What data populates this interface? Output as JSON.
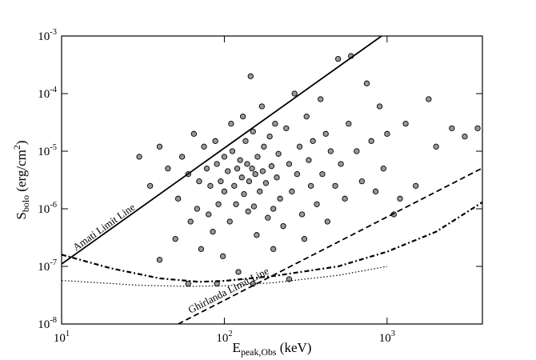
{
  "chart_data": {
    "type": "scatter",
    "xlabel": "E_{peak,Obs} (keV)",
    "ylabel": "S_{bolo} (erg/cm^{2})",
    "xscale": "log",
    "yscale": "log",
    "xlim": [
      10,
      3850
    ],
    "ylim": [
      1e-08,
      0.001
    ],
    "xticks": [
      {
        "value": 10,
        "label": "10^1"
      },
      {
        "value": 100,
        "label": "10^2"
      },
      {
        "value": 1000,
        "label": "10^3"
      }
    ],
    "yticks": [
      {
        "value": 1e-08,
        "label": "10^-8"
      },
      {
        "value": 1e-07,
        "label": "10^-7"
      },
      {
        "value": 1e-06,
        "label": "10^-6"
      },
      {
        "value": 1e-05,
        "label": "10^-5"
      },
      {
        "value": 0.0001,
        "label": "10^-4"
      },
      {
        "value": 0.001,
        "label": "10^-3"
      }
    ],
    "points": {
      "color": "#999999",
      "edge": "#000000",
      "x": [
        30,
        35,
        40,
        45,
        50,
        52,
        55,
        60,
        62,
        65,
        68,
        70,
        72,
        75,
        78,
        80,
        82,
        85,
        88,
        90,
        92,
        95,
        98,
        100,
        100,
        105,
        108,
        110,
        112,
        115,
        118,
        120,
        122,
        125,
        128,
        130,
        132,
        135,
        138,
        140,
        142,
        145,
        148,
        150,
        152,
        155,
        158,
        160,
        165,
        170,
        172,
        175,
        180,
        185,
        190,
        195,
        200,
        200,
        205,
        210,
        215,
        220,
        230,
        240,
        250,
        260,
        270,
        280,
        290,
        300,
        310,
        320,
        330,
        340,
        350,
        370,
        390,
        400,
        420,
        430,
        450,
        480,
        500,
        520,
        550,
        580,
        600,
        650,
        700,
        750,
        800,
        850,
        900,
        950,
        1000,
        1100,
        1200,
        1300,
        1500,
        1800,
        2000,
        2500,
        3000,
        3600,
        40,
        60,
        90,
        150,
        250
      ],
      "y": [
        8e-06,
        2.5e-06,
        1.2e-05,
        5e-06,
        3e-07,
        1.5e-06,
        8e-06,
        4e-06,
        6e-07,
        2e-05,
        1e-06,
        3e-06,
        2e-07,
        1.2e-05,
        5e-06,
        8e-07,
        2.5e-06,
        4e-07,
        1.5e-05,
        6e-06,
        1.2e-06,
        3e-06,
        1.5e-07,
        8e-06,
        2e-06,
        4.5e-06,
        6e-07,
        3e-05,
        1e-05,
        2.5e-06,
        1.2e-06,
        5e-06,
        8e-08,
        7e-06,
        3.5e-06,
        4e-05,
        1.8e-06,
        1.5e-05,
        6e-06,
        9e-07,
        3e-06,
        0.0002,
        5e-06,
        2.2e-05,
        1.1e-06,
        4e-06,
        3.5e-07,
        8e-06,
        2e-06,
        6e-05,
        4.5e-06,
        1.2e-05,
        2.8e-06,
        7e-07,
        1.8e-05,
        5.5e-06,
        2e-07,
        1e-06,
        3e-05,
        3.5e-06,
        9e-06,
        1.5e-06,
        5e-07,
        2.5e-05,
        6e-06,
        2e-06,
        0.0001,
        4e-06,
        1.2e-05,
        8e-07,
        3e-07,
        4e-05,
        7e-06,
        2.5e-06,
        1.5e-05,
        1.2e-06,
        8e-05,
        4e-06,
        2e-05,
        6e-07,
        1e-05,
        2.5e-06,
        0.0004,
        6e-06,
        1.5e-06,
        3e-05,
        0.00045,
        1e-05,
        3e-06,
        0.00015,
        1.5e-05,
        2e-06,
        6e-05,
        5e-06,
        2e-05,
        8e-07,
        1.5e-06,
        3e-05,
        2.5e-06,
        8e-05,
        1.2e-05,
        2.5e-05,
        1.8e-05,
        2.5e-05,
        1.3e-07,
        5e-08,
        5e-08,
        5e-08,
        6e-08
      ]
    },
    "lines": [
      {
        "name": "Amati Limit Line",
        "style": "solid",
        "x": [
          10,
          925
        ],
        "y": [
          1.1e-07,
          0.001
        ]
      },
      {
        "name": "Ghirlanda Limit Line",
        "style": "dashed",
        "x": [
          52,
          3850
        ],
        "y": [
          1e-08,
          5.1e-06
        ]
      },
      {
        "style": "dashdot",
        "x": [
          10,
          20,
          40,
          70,
          100,
          200,
          500,
          1000,
          2000,
          3850
        ],
        "y": [
          1.6e-07,
          9.3e-08,
          6.2e-08,
          5.4e-08,
          5.6e-08,
          6.8e-08,
          1e-07,
          1.8e-07,
          4e-07,
          1.3e-06
        ]
      },
      {
        "style": "dotted",
        "x": [
          10,
          30,
          60,
          100,
          200,
          500,
          1000
        ],
        "y": [
          5.7e-08,
          4.7e-08,
          4.5e-08,
          4.6e-08,
          5.2e-08,
          7e-08,
          1e-07
        ]
      }
    ]
  }
}
